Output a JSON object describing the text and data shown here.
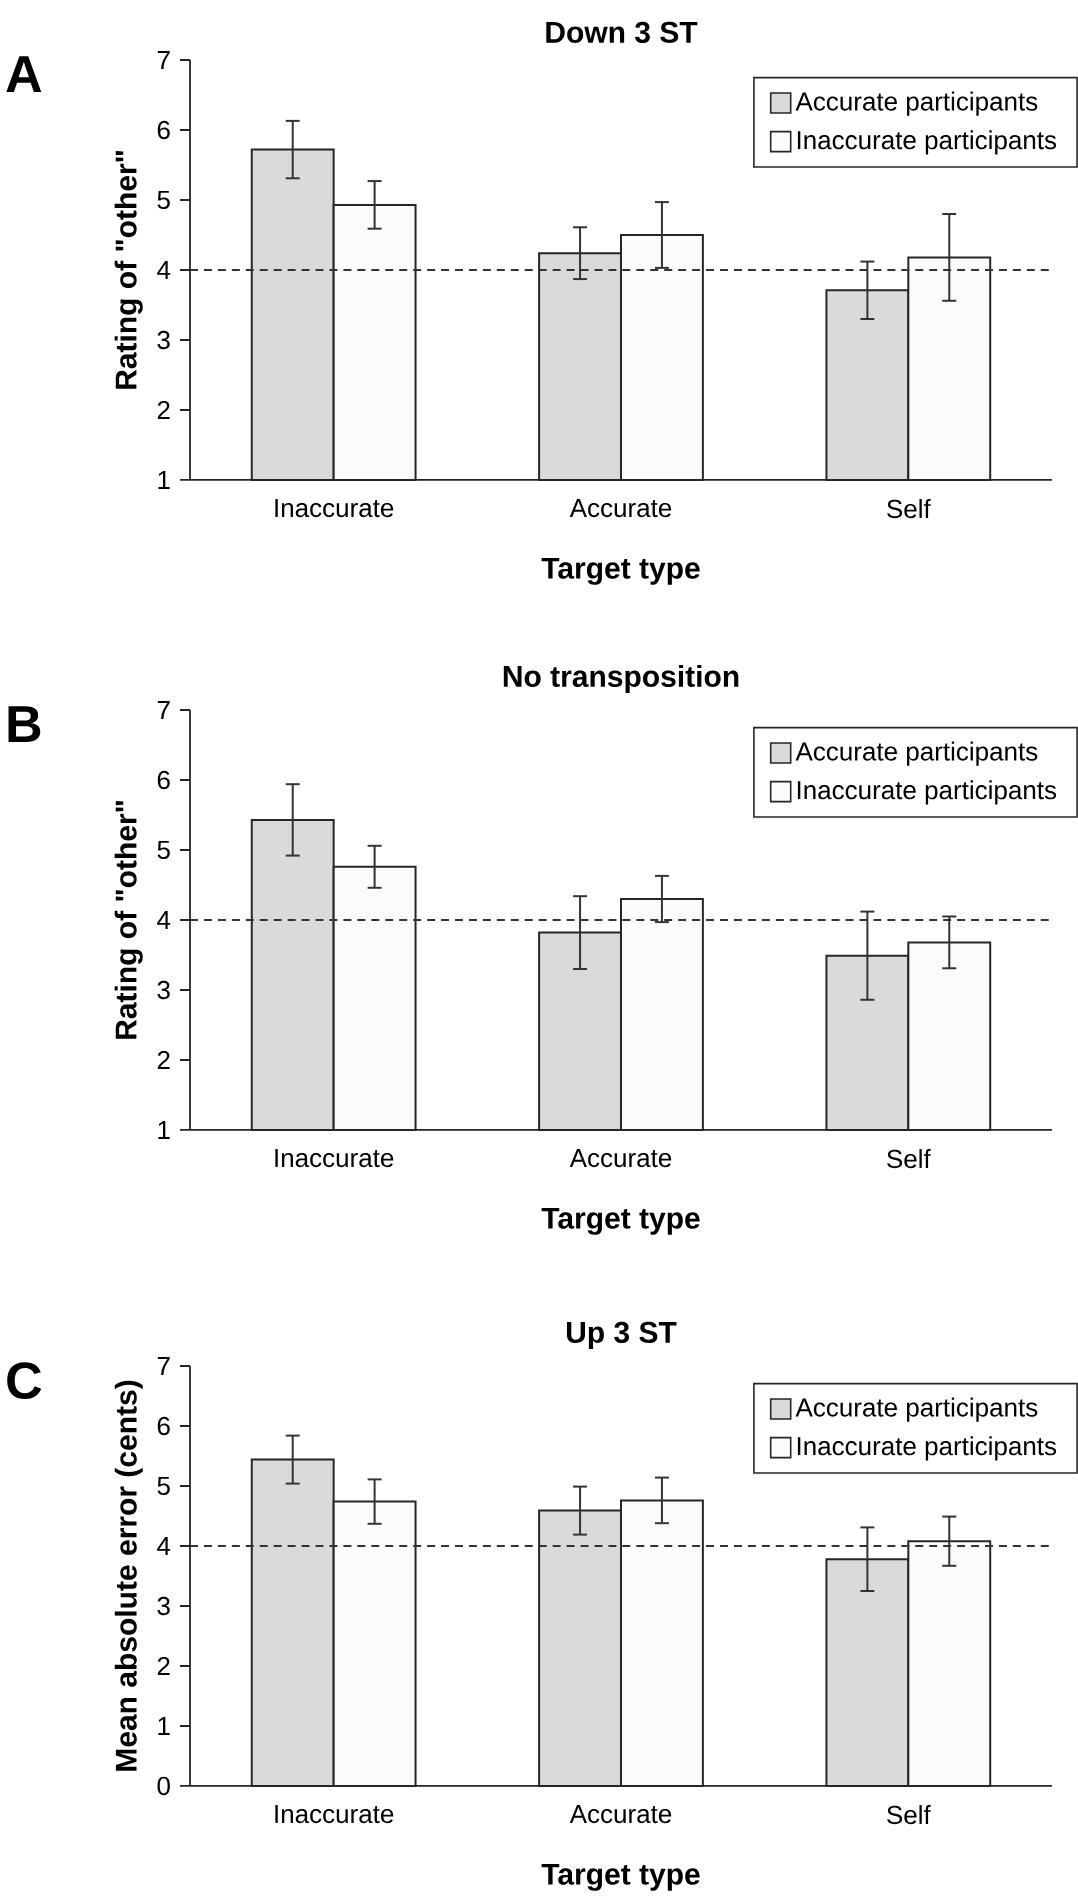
{
  "chart_data": [
    {
      "type": "bar",
      "title": "Down 3 ST",
      "xlabel": "Target type",
      "ylabel": "Rating of \"other\"",
      "annotations": [
        "A"
      ],
      "categories": [
        "Inaccurate",
        "Accurate",
        "Self"
      ],
      "series": [
        {
          "name": "Accurate participants",
          "color": "#d9dadc",
          "values": [
            5.72,
            4.24,
            3.71
          ],
          "errors": [
            0.41,
            0.37,
            0.41
          ]
        },
        {
          "name": "Inaccurate participants",
          "color": "#fbfbfb",
          "values": [
            4.93,
            4.5,
            4.18
          ],
          "errors": [
            0.34,
            0.47,
            0.62
          ]
        }
      ],
      "ylim": [
        1,
        7
      ],
      "yticks": [
        1,
        2,
        3,
        4,
        5,
        6,
        7
      ],
      "ref_lines": [
        {
          "axis": "y",
          "value": 4,
          "line_style": "dashed",
          "color": "#333333"
        }
      ],
      "legend": "top right",
      "grid": false
    },
    {
      "type": "bar",
      "title": "No transposition",
      "xlabel": "Target type",
      "ylabel": "Rating of \"other\"",
      "annotations": [
        "B"
      ],
      "categories": [
        "Inaccurate",
        "Accurate",
        "Self"
      ],
      "series": [
        {
          "name": "Accurate participants",
          "color": "#d9dadc",
          "values": [
            5.43,
            3.82,
            3.49
          ],
          "errors": [
            0.51,
            0.52,
            0.63
          ]
        },
        {
          "name": "Inaccurate participants",
          "color": "#fbfbfb",
          "values": [
            4.76,
            4.3,
            3.68
          ],
          "errors": [
            0.3,
            0.33,
            0.37
          ]
        }
      ],
      "ylim": [
        1,
        7
      ],
      "yticks": [
        1,
        2,
        3,
        4,
        5,
        6,
        7
      ],
      "ref_lines": [
        {
          "axis": "y",
          "value": 4,
          "line_style": "dashed",
          "color": "#333333"
        }
      ],
      "legend": "top right",
      "grid": false
    },
    {
      "type": "bar",
      "title": "Up 3 ST",
      "xlabel": "Target type",
      "ylabel": "Mean absolute error (cents)",
      "annotations": [
        "C"
      ],
      "categories": [
        "Inaccurate",
        "Accurate",
        "Self"
      ],
      "series": [
        {
          "name": "Accurate participants",
          "color": "#d9dadc",
          "values": [
            5.44,
            4.59,
            3.78
          ],
          "errors": [
            0.4,
            0.4,
            0.53
          ]
        },
        {
          "name": "Inaccurate participants",
          "color": "#fbfbfb",
          "values": [
            4.74,
            4.76,
            4.08
          ],
          "errors": [
            0.37,
            0.38,
            0.41
          ]
        }
      ],
      "ylim": [
        0,
        7
      ],
      "yticks": [
        0,
        1,
        2,
        3,
        4,
        5,
        6,
        7
      ],
      "ref_lines": [
        {
          "axis": "y",
          "value": 4,
          "line_style": "dashed",
          "color": "#333333"
        }
      ],
      "legend": "top right",
      "grid": false
    }
  ]
}
